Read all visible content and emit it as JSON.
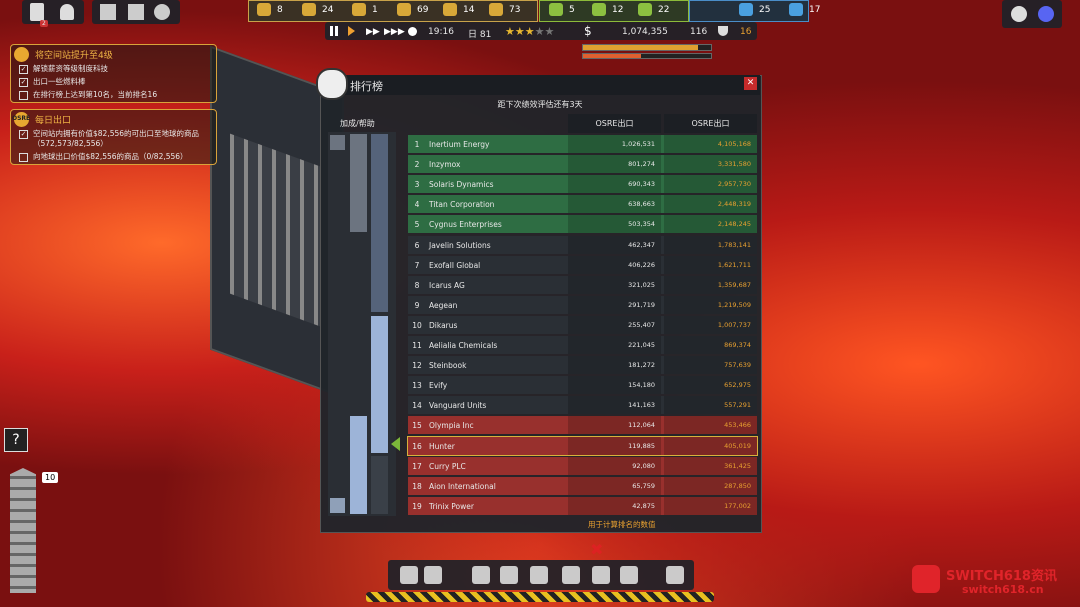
{
  "top_bar": {
    "notifications": "2",
    "resources": [
      "8",
      "24",
      "1",
      "69",
      "14",
      "73",
      "5",
      "12",
      "22",
      "25",
      "17"
    ],
    "time": "19:16",
    "day": "日 81",
    "money": "1,074,355",
    "population": "116",
    "rank": "16"
  },
  "objectives": [
    {
      "title": "将空间站提升至4级",
      "items": [
        {
          "text": "解锁薪资等级制度科技",
          "checked": true
        },
        {
          "text": "出口一些燃料棒",
          "checked": true
        },
        {
          "text": "在排行榜上达到第10名，当前排名16",
          "checked": false
        }
      ]
    },
    {
      "title": "每日出口",
      "badge": "OSRE",
      "items": [
        {
          "text": "空间站内拥有价值$82,556的可出口至地球的商品（572,573/82,556）",
          "checked": true
        },
        {
          "text": "向地球出口价值$82,556的商品（0/82,556）",
          "checked": false
        }
      ]
    }
  ],
  "side_count": "10",
  "leaderboard": {
    "title": "排行榜",
    "subtitle": "距下次绩效评估还有3天",
    "help": "加成/帮助",
    "columns": [
      "OSRE出口",
      "OSRE出口"
    ],
    "rows": [
      {
        "rank": "1",
        "name": "Inertium Energy",
        "value": "1,026,531",
        "total": "4,105,168",
        "color": "#2e6d43"
      },
      {
        "rank": "2",
        "name": "Inzymox",
        "value": "801,274",
        "total": "3,331,580",
        "color": "#2e6d43"
      },
      {
        "rank": "3",
        "name": "Solaris Dynamics",
        "value": "690,343",
        "total": "2,957,730",
        "color": "#2e6d43"
      },
      {
        "rank": "4",
        "name": "Titan Corporation",
        "value": "638,663",
        "total": "2,448,319",
        "color": "#2e6d43"
      },
      {
        "rank": "5",
        "name": "Cygnus Enterprises",
        "value": "503,354",
        "total": "2,148,245",
        "color": "#2e6d43"
      },
      {
        "rank": "6",
        "name": "Javelin Solutions",
        "value": "462,347",
        "total": "1,783,141",
        "color": "#2a2f35"
      },
      {
        "rank": "7",
        "name": "Exofall Global",
        "value": "406,226",
        "total": "1,621,711",
        "color": "#2a2f35"
      },
      {
        "rank": "8",
        "name": "Icarus AG",
        "value": "321,025",
        "total": "1,359,687",
        "color": "#2a2f35"
      },
      {
        "rank": "9",
        "name": "Aegean",
        "value": "291,719",
        "total": "1,219,509",
        "color": "#2a2f35"
      },
      {
        "rank": "10",
        "name": "Dikarus",
        "value": "255,407",
        "total": "1,007,737",
        "color": "#2a2f35"
      },
      {
        "rank": "11",
        "name": "Aelialia Chemicals",
        "value": "221,045",
        "total": "869,374",
        "color": "#2a2f35"
      },
      {
        "rank": "12",
        "name": "Steinbook",
        "value": "181,272",
        "total": "757,639",
        "color": "#2a2f35"
      },
      {
        "rank": "13",
        "name": "Evify",
        "value": "154,180",
        "total": "652,975",
        "color": "#2a2f35"
      },
      {
        "rank": "14",
        "name": "Vanguard Units",
        "value": "141,163",
        "total": "557,291",
        "color": "#2a2f35"
      },
      {
        "rank": "15",
        "name": "Olympia Inc",
        "value": "112,064",
        "total": "453,466",
        "color": "#98302d"
      },
      {
        "rank": "16",
        "name": "Hunter",
        "value": "119,885",
        "total": "405,019",
        "color": "#98302d",
        "outline": "#d8b13c"
      },
      {
        "rank": "17",
        "name": "Curry PLC",
        "value": "92,080",
        "total": "361,425",
        "color": "#98302d"
      },
      {
        "rank": "18",
        "name": "Aion International",
        "value": "65,759",
        "total": "287,850",
        "color": "#98302d"
      },
      {
        "rank": "19",
        "name": "Trinix Power",
        "value": "42,875",
        "total": "177,002",
        "color": "#98302d"
      }
    ],
    "footer": "用于计算排名的数值"
  },
  "watermark": {
    "brand": "SWITCH618资讯",
    "url": "switch618.cn"
  }
}
